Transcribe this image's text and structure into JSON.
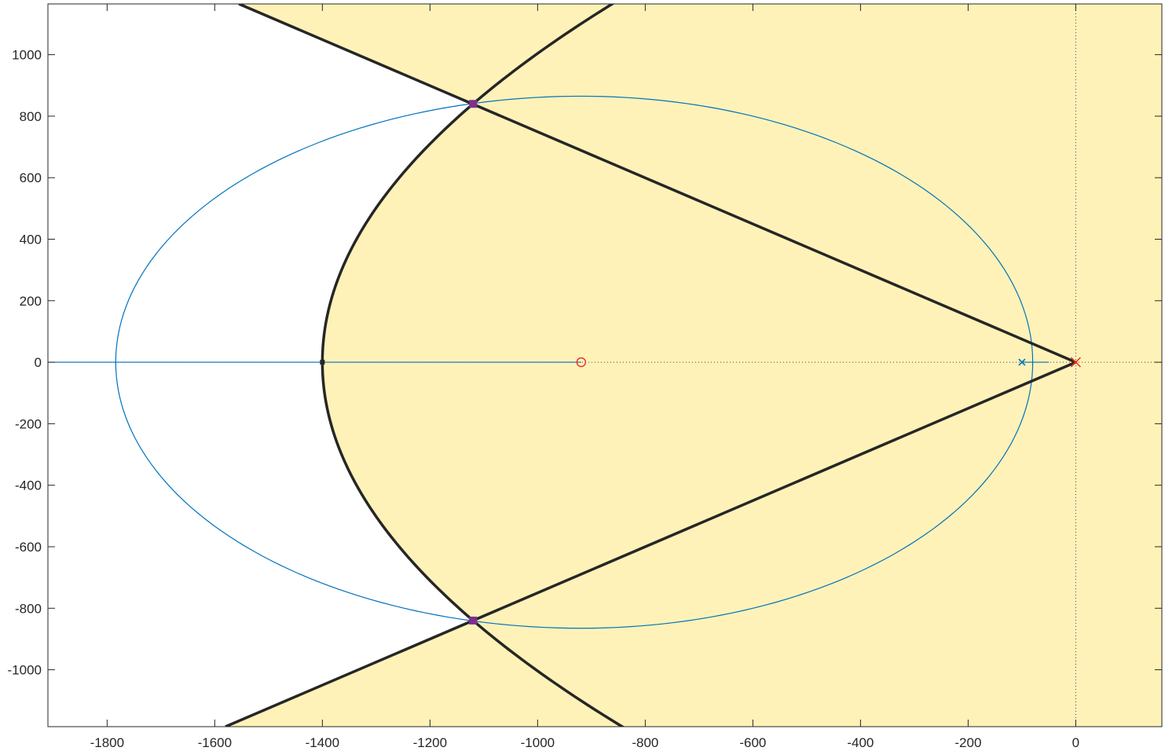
{
  "chart_data": {
    "type": "scatter",
    "title": "",
    "xlabel": "",
    "ylabel": "",
    "xlim": [
      -1910,
      160
    ],
    "ylim": [
      -1185,
      1165
    ],
    "x_ticks": [
      -1800,
      -1600,
      -1400,
      -1200,
      -1000,
      -800,
      -600,
      -400,
      -200,
      0
    ],
    "y_ticks": [
      -1000,
      -800,
      -600,
      -400,
      -200,
      0,
      200,
      400,
      600,
      800,
      1000
    ],
    "x_tick_labels": [
      "-1800",
      "-1600",
      "-1400",
      "-1200",
      "-1000",
      "-800",
      "-600",
      "-400",
      "-200",
      "0"
    ],
    "y_tick_labels": [
      "-1000",
      "-800",
      "-600",
      "-400",
      "-200",
      "0",
      "200",
      "400",
      "600",
      "800",
      "1000"
    ],
    "grid": false,
    "colors": {
      "region": "#fff2b8",
      "boundary": "#262626",
      "locus": "#0072bd",
      "zero_marker": "#e8392c",
      "pole_marker": "#e8392c",
      "closed_loop_pole": "#7e2f8e",
      "axis": "#262626"
    },
    "constraint_boundary": {
      "vertex": [
        0,
        0
      ],
      "wedge_edge_points": [
        [
          0,
          0
        ],
        [
          -1555,
          1165
        ],
        [
          -1580,
          -1185
        ]
      ],
      "parabola": {
        "vertex": [
          -1400,
          0
        ],
        "points": [
          [
            -1400,
            0
          ],
          [
            -1120,
            840
          ],
          [
            -757,
            1165
          ],
          [
            -1120,
            -840
          ],
          [
            -737,
            -1185
          ]
        ]
      }
    },
    "root_locus": {
      "ellipse": {
        "center": [
          -919,
          0
        ],
        "semi_axis_x": 865,
        "semi_axis_y": 865
      },
      "real_axis_branch": [
        [
          -1910,
          0
        ],
        [
          -919,
          0
        ]
      ],
      "short_branch": [
        [
          -100,
          0
        ],
        [
          -50,
          0
        ]
      ]
    },
    "zeros": [
      [
        -919,
        0
      ]
    ],
    "open_loop_poles": [
      [
        0,
        0
      ],
      [
        -100,
        0
      ]
    ],
    "closed_loop_poles": [
      [
        -1120,
        840
      ],
      [
        -1120,
        -840
      ],
      [
        -1400,
        0
      ]
    ]
  }
}
